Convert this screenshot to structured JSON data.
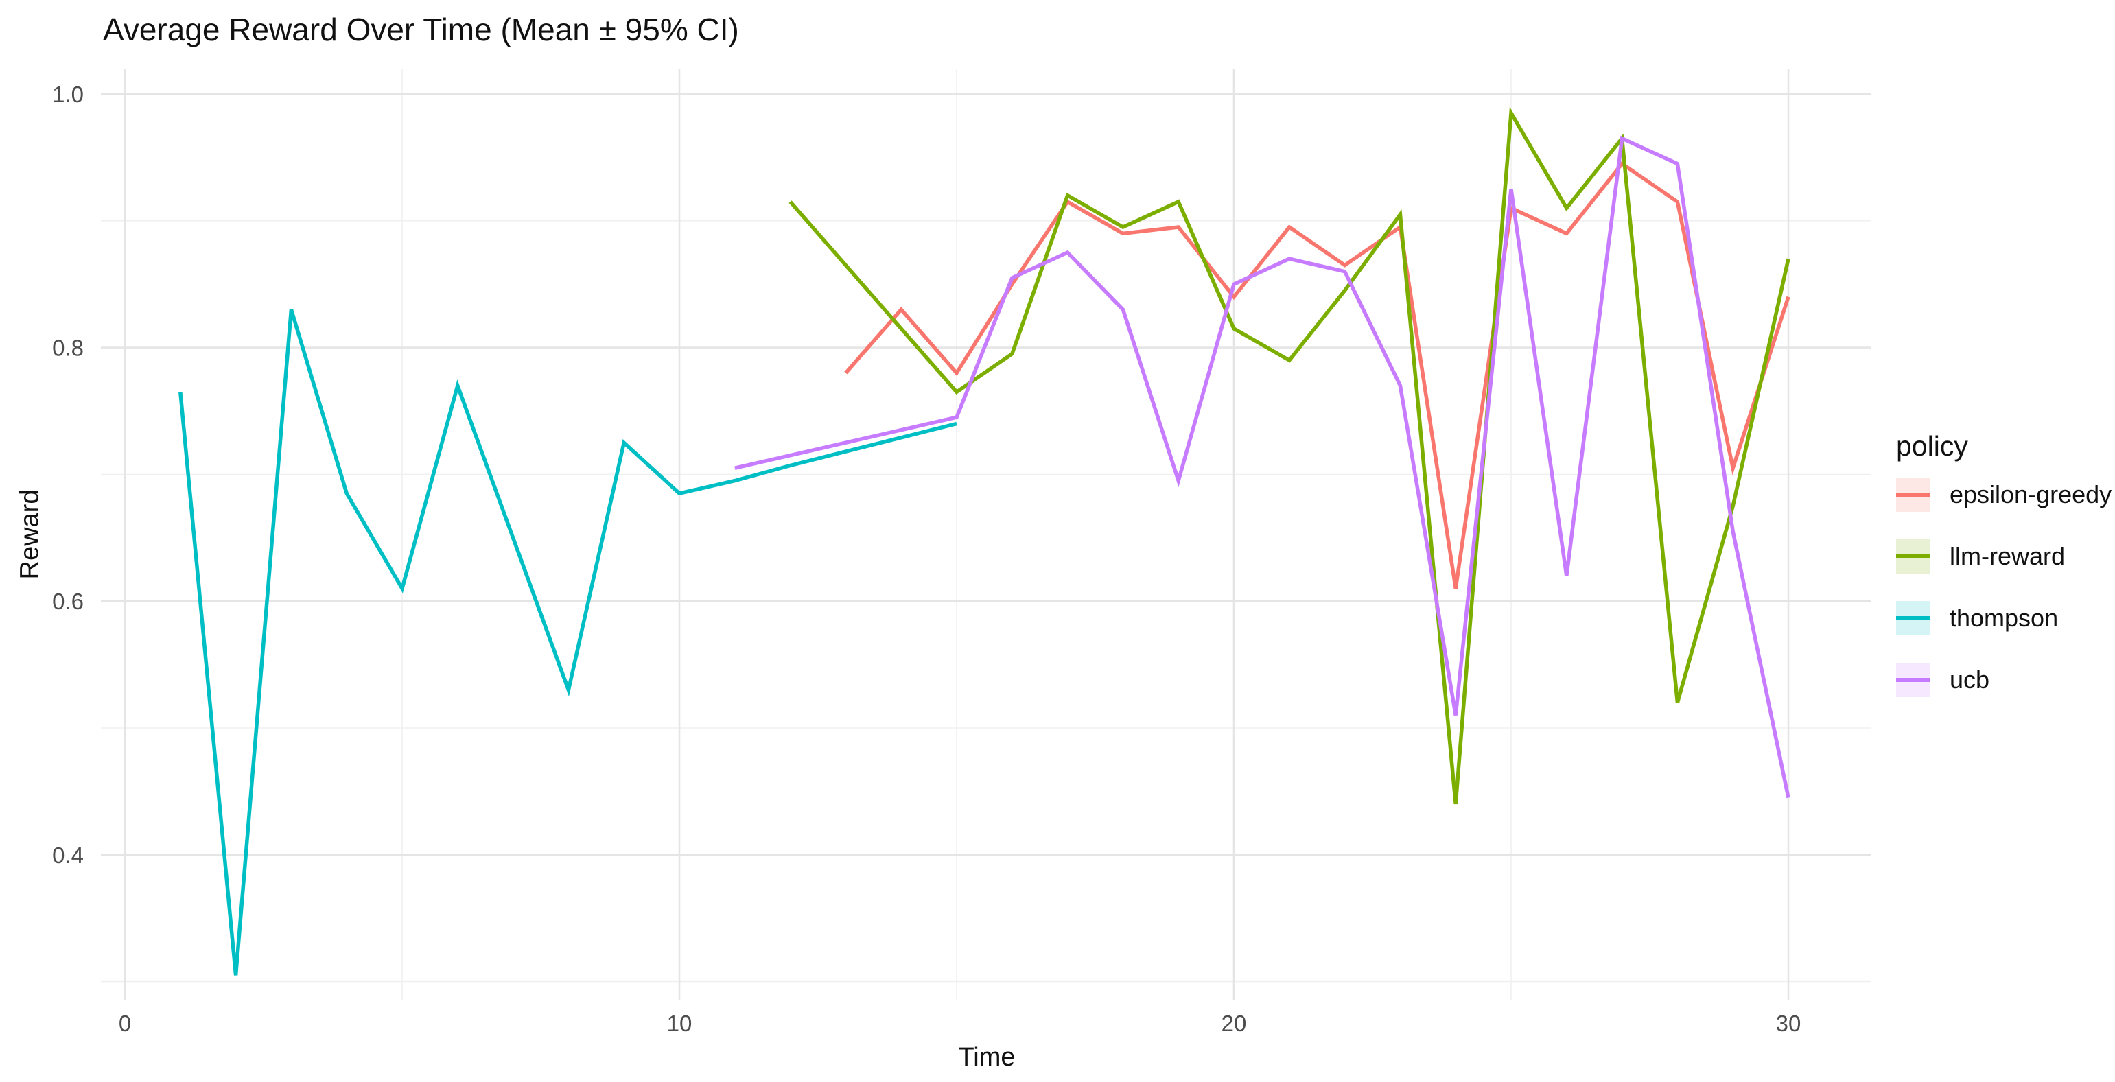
{
  "title": "Average Reward Over Time (Mean ± 95% CI)",
  "axes": {
    "x_label": "Time",
    "y_label": "Reward",
    "x_tick_labels": [
      "0",
      "10",
      "20",
      "30"
    ],
    "y_tick_labels": [
      "1.0",
      "0.8",
      "0.6",
      "0.4"
    ]
  },
  "legend": {
    "title": "policy",
    "items": [
      {
        "label": "epsilon-greedy",
        "color": "#F8766D"
      },
      {
        "label": "llm-reward",
        "color": "#7CAE00"
      },
      {
        "label": "thompson",
        "color": "#00BFC4"
      },
      {
        "label": "ucb",
        "color": "#C77CFF"
      }
    ]
  },
  "colors": {
    "background": "#FFFFFF",
    "grid_major": "#E5E5E5",
    "grid_minor": "#F0F0F0",
    "axis_text": "#4D4D4D",
    "title_text": "#111111",
    "ribbon_alpha": 0.17
  },
  "chart_data": {
    "type": "line",
    "title": "Average Reward Over Time (Mean ± 95% CI)",
    "xlabel": "Time",
    "ylabel": "Reward",
    "xlim": [
      -0.45,
      31.5
    ],
    "ylim": [
      0.27,
      1.02
    ],
    "x_major_ticks": [
      0,
      10,
      20,
      30
    ],
    "x_minor_ticks": [
      5,
      15,
      25
    ],
    "y_major_ticks": [
      1.0,
      0.8,
      0.6,
      0.4
    ],
    "y_minor_ticks": [
      0.9,
      0.7,
      0.5,
      0.3
    ],
    "grid": true,
    "legend_position": "right",
    "series": [
      {
        "name": "epsilon-greedy",
        "color": "#F8766D",
        "x": [
          13,
          14,
          15,
          16,
          17,
          18,
          19,
          20,
          21,
          22,
          23,
          24,
          25,
          26,
          27,
          28,
          29,
          30
        ],
        "y": [
          0.78,
          0.83,
          0.78,
          0.85,
          0.915,
          0.89,
          0.895,
          0.84,
          0.895,
          0.865,
          0.895,
          0.61,
          0.91,
          0.89,
          0.945,
          0.915,
          0.705,
          0.84
        ]
      },
      {
        "name": "llm-reward",
        "color": "#7CAE00",
        "x": [
          12,
          13,
          14,
          15,
          16,
          17,
          18,
          19,
          20,
          21,
          22,
          23,
          24,
          25,
          26,
          27,
          28,
          29,
          30
        ],
        "y": [
          0.915,
          0.865,
          0.815,
          0.765,
          0.795,
          0.92,
          0.895,
          0.915,
          0.815,
          0.79,
          0.845,
          0.905,
          0.44,
          0.985,
          0.91,
          0.965,
          0.52,
          0.675,
          0.87
        ]
      },
      {
        "name": "thompson",
        "color": "#00BFC4",
        "x": [
          1,
          2,
          3,
          4,
          5,
          6,
          7,
          8,
          9,
          10,
          11,
          12,
          13,
          14,
          15
        ],
        "y": [
          0.765,
          0.305,
          0.83,
          0.685,
          0.61,
          0.77,
          0.65,
          0.53,
          0.725,
          0.685,
          0.695,
          0.707,
          0.718,
          0.729,
          0.74
        ]
      },
      {
        "name": "ucb",
        "color": "#C77CFF",
        "x": [
          11,
          12,
          13,
          14,
          15,
          16,
          17,
          18,
          19,
          20,
          21,
          22,
          23,
          24,
          25,
          26,
          27,
          28,
          29,
          30
        ],
        "y": [
          0.705,
          0.715,
          0.725,
          0.735,
          0.745,
          0.855,
          0.875,
          0.83,
          0.695,
          0.85,
          0.87,
          0.86,
          0.77,
          0.51,
          0.925,
          0.62,
          0.965,
          0.945,
          0.655,
          0.445
        ]
      }
    ]
  }
}
